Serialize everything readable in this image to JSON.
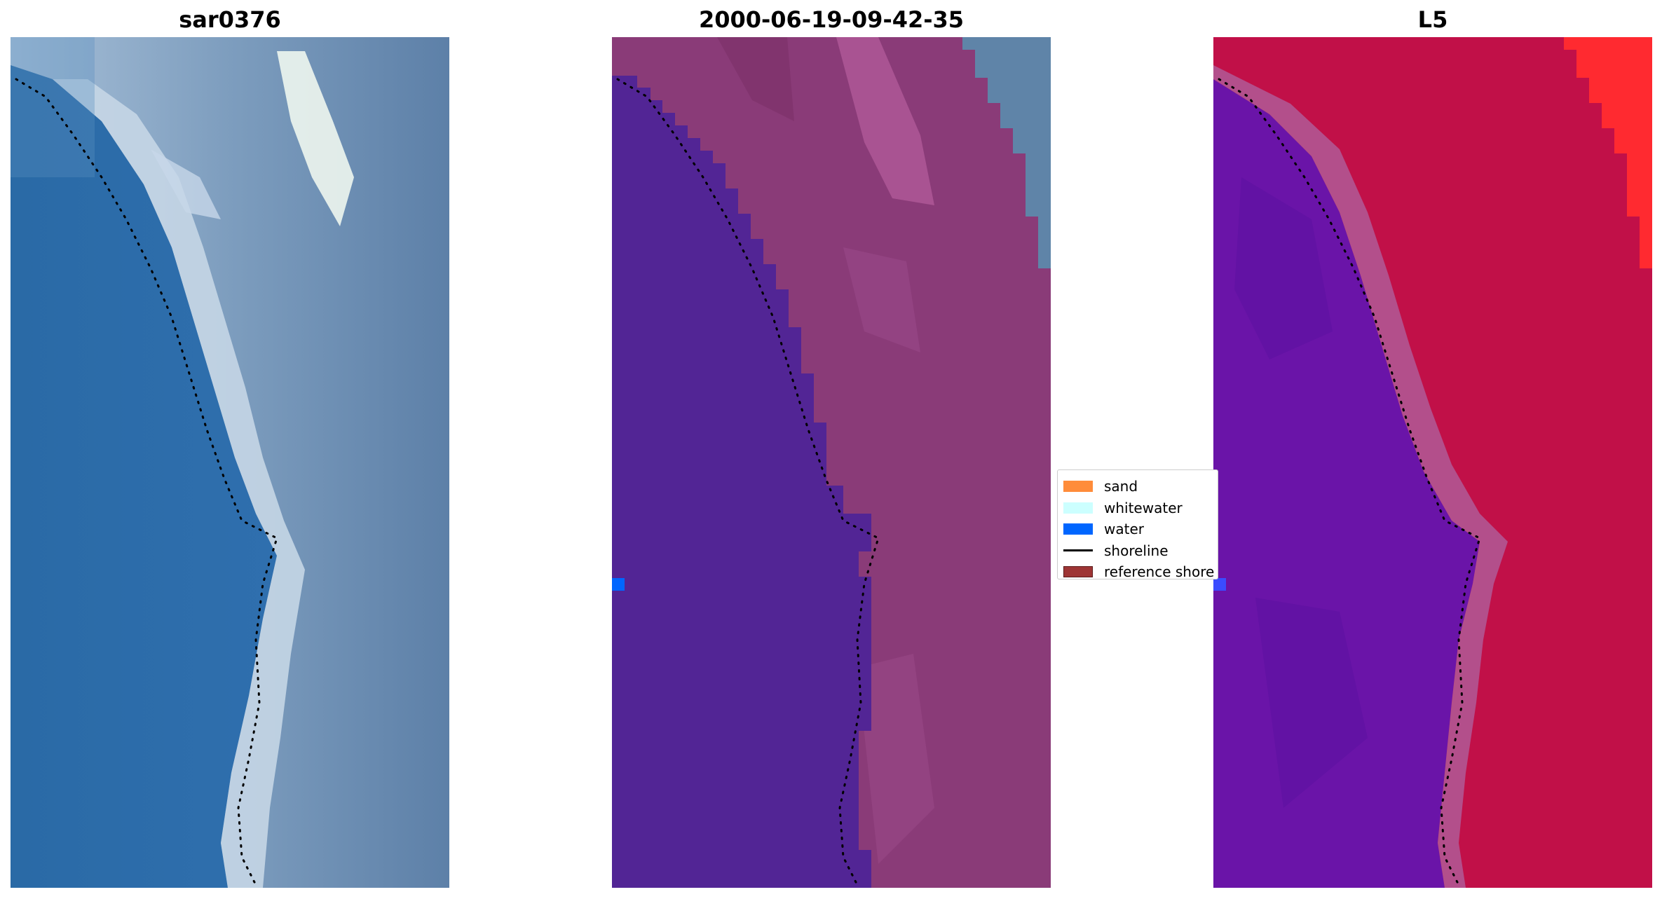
{
  "panels": [
    {
      "title": "sar0376"
    },
    {
      "title": "2000-06-19-09-42-35"
    },
    {
      "title": "L5"
    }
  ],
  "legend": {
    "items": [
      {
        "label": "sand",
        "kind": "patch",
        "color": "#ff8c3a"
      },
      {
        "label": "whitewater",
        "kind": "patch",
        "color": "#ccffff"
      },
      {
        "label": "water",
        "kind": "patch",
        "color": "#0066ff"
      },
      {
        "label": "shoreline",
        "kind": "line",
        "color": "#000000"
      },
      {
        "label": "reference shore",
        "kind": "patch",
        "color": "#9e3535"
      }
    ]
  },
  "colors": {
    "sea_blue": "#3b76a8",
    "beach_white": "#d8e4ec",
    "class_water_purple": "#522595",
    "class_land_magenta": "#8a3b78",
    "false_color_red": "#c11048",
    "false_color_violet": "#6a14a8"
  }
}
